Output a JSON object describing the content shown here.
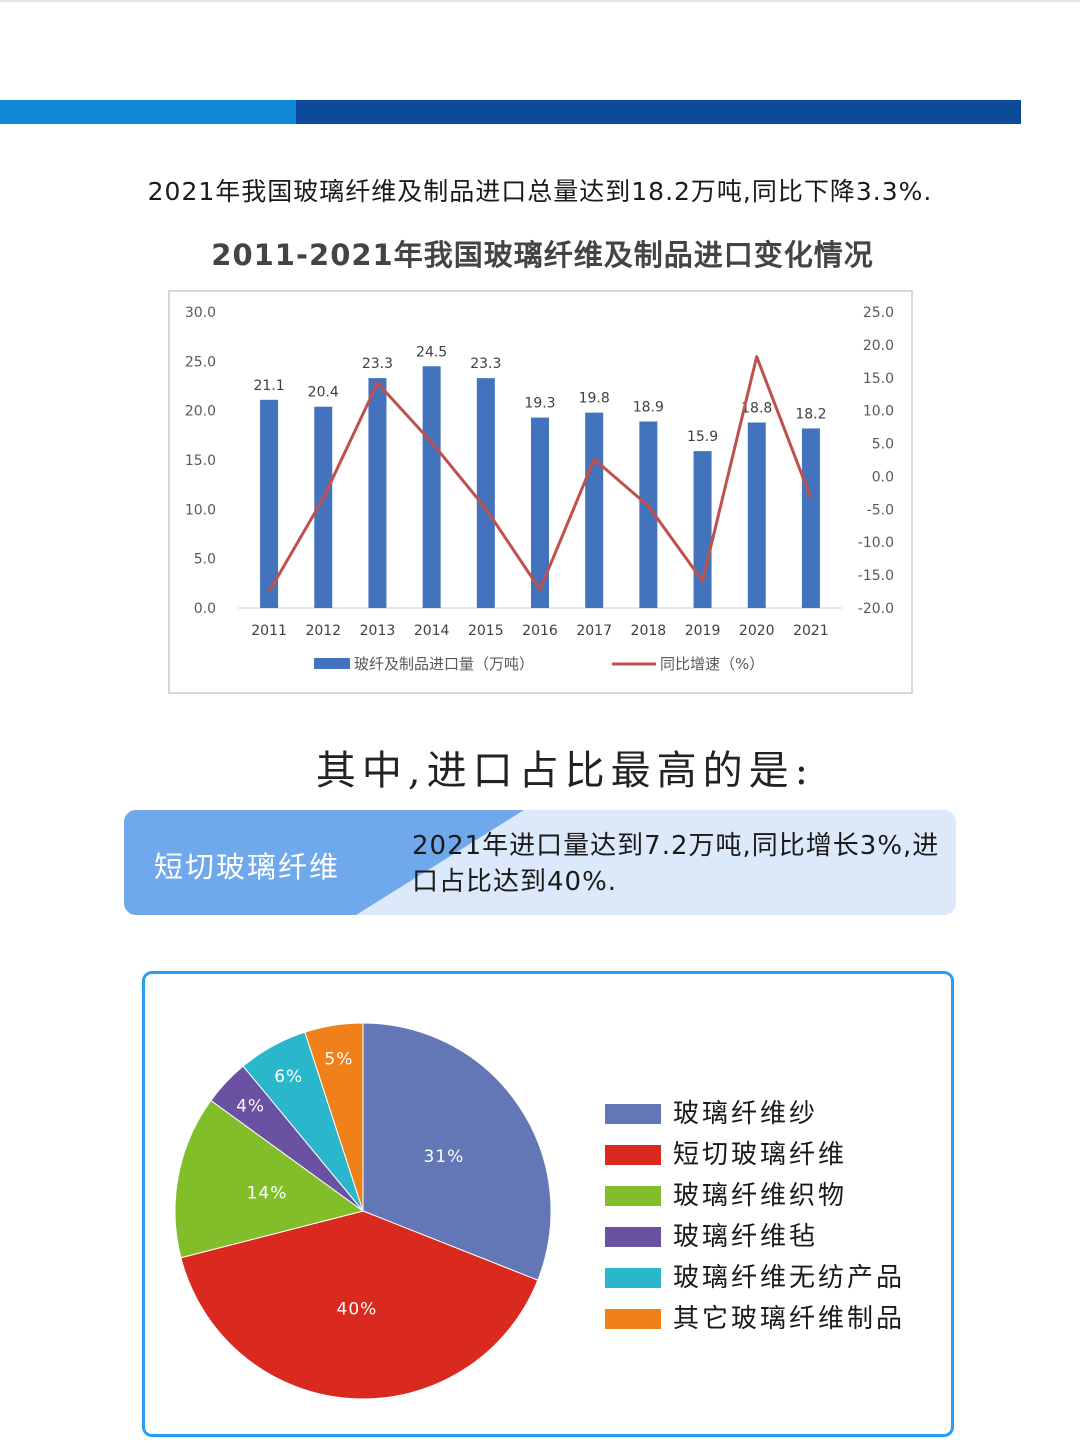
{
  "colors": {
    "band_left": "#0e8ad8",
    "band_right": "#0d4a9a",
    "tag_bg": "#6fa8eb",
    "bar": "#4473bd",
    "line": "#c0504d"
  },
  "intro_text": "2021年我国玻璃纤维及制品进口总量达到18.2万吨,同比下降3.3%.",
  "sub_heading": "其中,进口占比最高的是:",
  "highlight": {
    "tag": "短切玻璃纤维",
    "text": "2021年进口量达到7.2万吨,同比增长3%,进口占比达到40%."
  },
  "chart_data": [
    {
      "type": "bar",
      "title": "2011-2021年我国玻璃纤维及制品进口变化情况",
      "categories": [
        "2011",
        "2012",
        "2013",
        "2014",
        "2015",
        "2016",
        "2017",
        "2018",
        "2019",
        "2020",
        "2021"
      ],
      "series": [
        {
          "name": "玻纤及制品进口量（万吨）",
          "type": "bar",
          "axis": "left",
          "color": "#4473bd",
          "values": [
            21.1,
            20.4,
            23.3,
            24.5,
            23.3,
            19.3,
            19.8,
            18.9,
            15.9,
            18.8,
            18.2
          ],
          "labels": [
            "21.1",
            "20.4",
            "23.3",
            "24.5",
            "23.3",
            "19.3",
            "19.8",
            "18.9",
            "15.9",
            "18.8",
            "18.2"
          ]
        },
        {
          "name": "同比增速（%）",
          "type": "line",
          "axis": "right",
          "color": "#c0504d",
          "values": [
            -17.5,
            -3.3,
            14.2,
            5.2,
            -4.9,
            -17.2,
            2.6,
            -4.5,
            -15.9,
            18.2,
            -3.3
          ]
        }
      ],
      "y_left": {
        "ylim": [
          0,
          30
        ],
        "ticks": [
          "0.0",
          "5.0",
          "10.0",
          "15.0",
          "20.0",
          "25.0",
          "30.0"
        ]
      },
      "y_right": {
        "ylim": [
          -20,
          25
        ],
        "ticks": [
          "-20.0",
          "-15.0",
          "-10.0",
          "-5.0",
          "0.0",
          "5.0",
          "10.0",
          "15.0",
          "20.0",
          "25.0"
        ]
      },
      "grid": false,
      "legend_position": "bottom"
    },
    {
      "type": "pie",
      "slices": [
        {
          "label": "玻璃纤维纱",
          "value": 31,
          "text": "31%",
          "color": "#6377b6"
        },
        {
          "label": "短切玻璃纤维",
          "value": 40,
          "text": "40%",
          "color": "#da2a1f"
        },
        {
          "label": "玻璃纤维织物",
          "value": 14,
          "text": "14%",
          "color": "#82be2a"
        },
        {
          "label": "玻璃纤维毡",
          "value": 4,
          "text": "4%",
          "color": "#6b51a1"
        },
        {
          "label": "玻璃纤维无纺产品",
          "value": 6,
          "text": "6%",
          "color": "#2ab7cb"
        },
        {
          "label": "其它玻璃纤维制品",
          "value": 5,
          "text": "5%",
          "color": "#f0801a"
        }
      ],
      "legend_position": "right"
    }
  ]
}
